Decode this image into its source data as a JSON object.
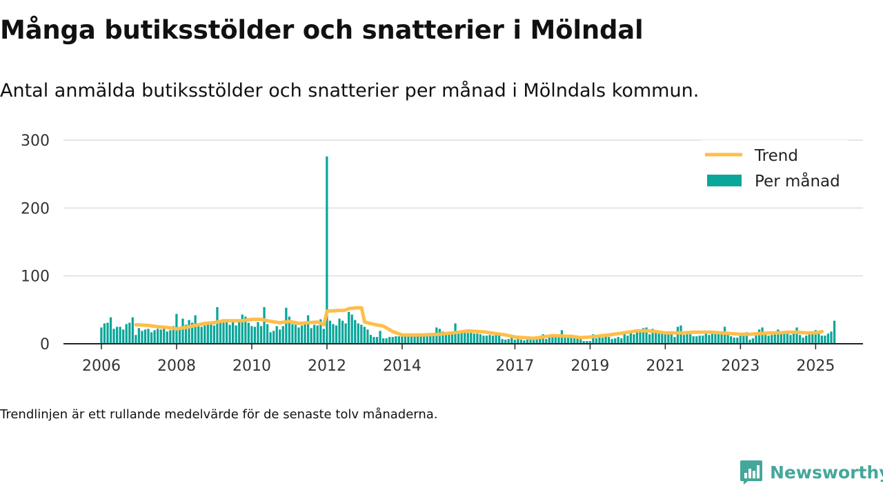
{
  "header": {
    "title": "Många butiksstölder och snatterier i Mölndal",
    "subtitle": "Antal anmälda butiksstölder och snatterier per månad i Mölndals kommun."
  },
  "footnote": "Trendlinjen är ett rullande medelvärde för de senaste tolv månaderna.",
  "brand": {
    "name": "Newsworthy"
  },
  "colors": {
    "bars": "#0aa69a",
    "trend": "#ffbe4a",
    "grid": "#dddddd",
    "axis": "#222222",
    "brand": "#43a79b"
  },
  "chart_data": {
    "type": "bar",
    "ylim": [
      0,
      300
    ],
    "yticks": [
      0,
      100,
      200,
      300
    ],
    "xlim": [
      2006.0,
      2025.25
    ],
    "xticks": [
      {
        "value": 2006,
        "label": "2006"
      },
      {
        "value": 2008,
        "label": "2008"
      },
      {
        "value": 2010,
        "label": "2010"
      },
      {
        "value": 2012,
        "label": "2012"
      },
      {
        "value": 2014,
        "label": "2014"
      },
      {
        "value": 2017,
        "label": "2017"
      },
      {
        "value": 2019,
        "label": "2019"
      },
      {
        "value": 2021,
        "label": "2021"
      },
      {
        "value": 2023,
        "label": "2023"
      },
      {
        "value": 2025,
        "label": "2025"
      }
    ],
    "grid": true,
    "legend_position": "top-right",
    "bar_series": {
      "name": "Per månad",
      "start_year": 2006,
      "start_month": 1,
      "values": [
        24,
        30,
        31,
        39,
        22,
        25,
        25,
        21,
        29,
        31,
        39,
        13,
        23,
        19,
        21,
        22,
        17,
        20,
        22,
        21,
        25,
        18,
        20,
        26,
        44,
        21,
        37,
        28,
        35,
        31,
        42,
        26,
        25,
        27,
        30,
        31,
        27,
        54,
        33,
        31,
        35,
        28,
        33,
        27,
        34,
        43,
        40,
        31,
        26,
        25,
        32,
        26,
        54,
        29,
        17,
        19,
        26,
        21,
        26,
        53,
        40,
        29,
        28,
        24,
        27,
        31,
        42,
        23,
        28,
        27,
        36,
        22,
        276,
        34,
        29,
        27,
        37,
        34,
        30,
        47,
        43,
        35,
        30,
        28,
        25,
        21,
        13,
        10,
        10,
        19,
        8,
        8,
        10,
        10,
        11,
        11,
        11,
        12,
        11,
        12,
        15,
        13,
        12,
        12,
        12,
        12,
        12,
        24,
        22,
        18,
        13,
        14,
        15,
        30,
        18,
        17,
        16,
        16,
        16,
        15,
        15,
        14,
        12,
        12,
        13,
        12,
        15,
        15,
        7,
        6,
        7,
        9,
        6,
        7,
        6,
        5,
        6,
        8,
        7,
        9,
        10,
        14,
        7,
        10,
        11,
        12,
        12,
        20,
        10,
        11,
        12,
        10,
        11,
        8,
        4,
        4,
        4,
        14,
        8,
        12,
        9,
        14,
        10,
        7,
        8,
        10,
        8,
        15,
        12,
        16,
        14,
        19,
        21,
        23,
        24,
        14,
        22,
        16,
        16,
        16,
        14,
        15,
        15,
        10,
        25,
        27,
        13,
        14,
        14,
        11,
        11,
        12,
        12,
        18,
        13,
        16,
        14,
        16,
        18,
        25,
        15,
        11,
        9,
        9,
        12,
        16,
        17,
        6,
        8,
        12,
        21,
        24,
        13,
        12,
        13,
        16,
        21,
        16,
        16,
        17,
        13,
        16,
        24,
        13,
        9,
        12,
        16,
        18,
        20,
        16,
        12,
        12,
        15,
        18,
        34
      ]
    },
    "line_series": {
      "name": "Trend",
      "points": [
        [
          2006.92,
          28
        ],
        [
          2007.25,
          27
        ],
        [
          2007.5,
          25
        ],
        [
          2007.75,
          24
        ],
        [
          2008.0,
          22
        ],
        [
          2008.25,
          24
        ],
        [
          2008.5,
          27
        ],
        [
          2008.75,
          30
        ],
        [
          2009.0,
          31
        ],
        [
          2009.25,
          34
        ],
        [
          2009.5,
          34
        ],
        [
          2009.75,
          34
        ],
        [
          2010.0,
          36
        ],
        [
          2010.25,
          36
        ],
        [
          2010.5,
          33
        ],
        [
          2010.75,
          31
        ],
        [
          2011.0,
          33
        ],
        [
          2011.25,
          30
        ],
        [
          2011.5,
          31
        ],
        [
          2011.75,
          32
        ],
        [
          2011.92,
          28
        ],
        [
          2012.0,
          48
        ],
        [
          2012.3,
          49
        ],
        [
          2012.45,
          49
        ],
        [
          2012.6,
          52
        ],
        [
          2012.8,
          53
        ],
        [
          2012.92,
          53
        ],
        [
          2013.0,
          32
        ],
        [
          2013.3,
          28
        ],
        [
          2013.5,
          26
        ],
        [
          2013.75,
          18
        ],
        [
          2014.0,
          13
        ],
        [
          2014.5,
          13
        ],
        [
          2015.0,
          14
        ],
        [
          2015.5,
          17
        ],
        [
          2015.75,
          19
        ],
        [
          2016.0,
          18
        ],
        [
          2016.25,
          17
        ],
        [
          2016.5,
          15
        ],
        [
          2016.75,
          13
        ],
        [
          2017.0,
          10
        ],
        [
          2017.5,
          8
        ],
        [
          2017.75,
          10
        ],
        [
          2018.0,
          12
        ],
        [
          2018.5,
          11
        ],
        [
          2018.75,
          9
        ],
        [
          2019.0,
          10
        ],
        [
          2019.5,
          13
        ],
        [
          2019.75,
          15
        ],
        [
          2020.0,
          17
        ],
        [
          2020.25,
          19
        ],
        [
          2020.5,
          19
        ],
        [
          2020.75,
          18
        ],
        [
          2021.0,
          16
        ],
        [
          2021.25,
          16
        ],
        [
          2021.5,
          16
        ],
        [
          2021.75,
          17
        ],
        [
          2022.0,
          17
        ],
        [
          2022.25,
          17
        ],
        [
          2022.5,
          16
        ],
        [
          2022.75,
          15
        ],
        [
          2023.0,
          14
        ],
        [
          2023.25,
          14
        ],
        [
          2023.5,
          15
        ],
        [
          2023.75,
          16
        ],
        [
          2024.0,
          16
        ],
        [
          2024.25,
          17
        ],
        [
          2024.5,
          17
        ],
        [
          2024.75,
          16
        ],
        [
          2025.0,
          16
        ],
        [
          2025.17,
          18
        ]
      ]
    }
  }
}
